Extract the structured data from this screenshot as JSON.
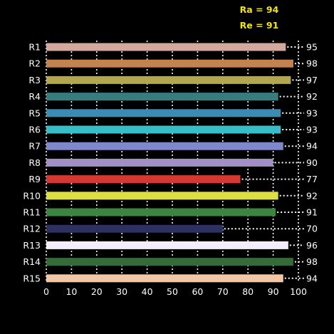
{
  "header": {
    "ra_label": "Ra = 94",
    "re_label": "Re = 91"
  },
  "colors": {
    "background": "#000000",
    "grid": "#ffffff",
    "text": "#ffffff",
    "header_text": "#f5e600"
  },
  "chart_data": {
    "type": "bar",
    "orientation": "horizontal",
    "title": "",
    "xlabel": "",
    "ylabel": "",
    "xlim": [
      0,
      100
    ],
    "x_ticks": [
      0,
      10,
      20,
      30,
      40,
      50,
      60,
      70,
      80,
      90,
      100
    ],
    "grid": true,
    "categories": [
      "R1",
      "R2",
      "R3",
      "R4",
      "R5",
      "R6",
      "R7",
      "R8",
      "R9",
      "R10",
      "R11",
      "R12",
      "R13",
      "R14",
      "R15"
    ],
    "values": [
      95,
      98,
      97,
      92,
      93,
      93,
      94,
      90,
      77,
      92,
      91,
      70,
      96,
      98,
      94
    ],
    "bar_colors": [
      "#d5a89e",
      "#c4824f",
      "#b4a64c",
      "#377d7d",
      "#3a8cb4",
      "#38bcc8",
      "#7e88cb",
      "#a28fc6",
      "#d53731",
      "#dcdf41",
      "#3b8540",
      "#2e3062",
      "#f4eefa",
      "#356a3a",
      "#f3c7a3"
    ]
  }
}
